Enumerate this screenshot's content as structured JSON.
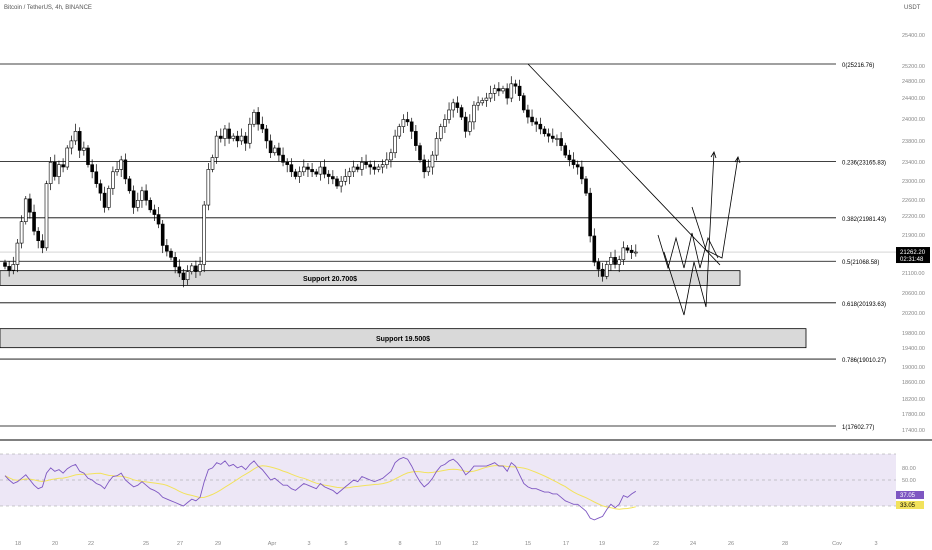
{
  "header": {
    "symbol_line": "Bitcoin / TetherUS, 4h, BINANCE",
    "currency": "USDT"
  },
  "colors": {
    "candle_up": "#ffffff",
    "candle_down": "#000000",
    "candle_border": "#000000",
    "fib_line": "#000000",
    "support_fill": "#d9d9d9",
    "rsi_line": "#7e57c2",
    "rsi_ma": "#f2e25c",
    "rsi_band": "#ede7f6",
    "price_label_bg": "#000000",
    "rsi_label_bg": "#7e57c2",
    "rsi_ma_label_bg": "#f2e25c"
  },
  "chart_data": {
    "type": "candlestick",
    "price_axis": {
      "ticks": [
        "25400.00",
        "25200.00",
        "24800.00",
        "24400.00",
        "24000.00",
        "23800.00",
        "23400.00",
        "23000.00",
        "22600.00",
        "22200.00",
        "21900.00",
        "21500.00",
        "21100.00",
        "20600.00",
        "20200.00",
        "19800.00",
        "19400.00",
        "19000.00",
        "18600.00",
        "18200.00",
        "17800.00",
        "17400.00"
      ],
      "ylim": [
        17300,
        25500
      ]
    },
    "time_axis": {
      "ticks": [
        "18",
        "20",
        "22",
        "25",
        "27",
        "29",
        "Apr",
        "3",
        "5",
        "8",
        "10",
        "12",
        "15",
        "17",
        "19",
        "22",
        "24",
        "26",
        "28",
        "Cov",
        "3"
      ]
    },
    "current_price": {
      "value": "21262.20",
      "countdown": "02:31:48"
    },
    "fib_levels": [
      {
        "ratio": "0",
        "price": 25216.76,
        "label": "0(25216.76)"
      },
      {
        "ratio": "0.236",
        "price": 23165.83,
        "label": "0.236(23165.83)"
      },
      {
        "ratio": "0.382",
        "price": 21981.43,
        "label": "0.382(21981.43)"
      },
      {
        "ratio": "0.5",
        "price": 21068.58,
        "label": "0.5(21068.58)"
      },
      {
        "ratio": "0.618",
        "price": 20193.63,
        "label": "0.618(20193.63)"
      },
      {
        "ratio": "0.786",
        "price": 19010.27,
        "label": "0.786(19010.27)"
      },
      {
        "ratio": "1",
        "price": 17602.77,
        "label": "1(17602.77)"
      }
    ],
    "support_zones": [
      {
        "label": "Support 20.700$",
        "top": 20870,
        "bottom": 20560
      },
      {
        "label": "Support 19.500$",
        "top": 19650,
        "bottom": 19250
      }
    ],
    "candles_close": [
      20960,
      20880,
      21000,
      21450,
      21900,
      22380,
      22100,
      21700,
      21500,
      21350,
      22700,
      23150,
      22850,
      23100,
      23050,
      23450,
      23600,
      23800,
      23400,
      23450,
      23100,
      22950,
      22700,
      22500,
      22200,
      22600,
      22950,
      23000,
      23200,
      22800,
      22550,
      22200,
      22350,
      22550,
      22350,
      22150,
      22050,
      21850,
      21400,
      21280,
      21150,
      20950,
      20820,
      20680,
      20850,
      20970,
      20850,
      21000,
      22250,
      23000,
      23250,
      23700,
      23650,
      23850,
      23650,
      23700,
      23600,
      23700,
      23550,
      23950,
      24200,
      23950,
      23850,
      23600,
      23350,
      23450,
      23300,
      23150,
      23100,
      22950,
      22850,
      22950,
      23050,
      23000,
      22950,
      22900,
      23050,
      22900,
      22850,
      22800,
      22650,
      22750,
      22850,
      22950,
      23050,
      23000,
      23150,
      23100,
      23050,
      23000,
      23050,
      23100,
      23200,
      23350,
      23700,
      23900,
      24050,
      24000,
      23800,
      23500,
      23200,
      22950,
      23050,
      23300,
      23650,
      23900,
      24050,
      24250,
      24400,
      24300,
      24100,
      23800,
      24000,
      24350,
      24400,
      24450,
      24500,
      24600,
      24700,
      24650,
      24700,
      24500,
      24800,
      24750,
      24550,
      24250,
      24100,
      24000,
      23950,
      23850,
      23750,
      23700,
      23650,
      23650,
      23500,
      23300,
      23200,
      23100,
      23050,
      22800,
      22500,
      21600,
      21050,
      20900,
      20750,
      21000,
      21150,
      21000,
      21100,
      21350,
      21300,
      21250,
      21262
    ],
    "fib_range": {
      "high": 25216.76,
      "low": 17602.77
    },
    "annotations": [
      "projection path zig-zag with arrows toward 0.236 level",
      "descending trendline from 25216 high"
    ],
    "rsi": {
      "levels": [
        "80.00",
        "50.00",
        "20.00"
      ],
      "ylim": [
        0,
        100
      ],
      "value_label": "37.05",
      "ma_label": "33.05",
      "values": [
        55,
        50,
        46,
        48,
        52,
        56,
        50,
        44,
        40,
        42,
        58,
        64,
        60,
        62,
        58,
        63,
        66,
        68,
        60,
        58,
        52,
        50,
        46,
        44,
        40,
        48,
        54,
        55,
        58,
        50,
        46,
        42,
        44,
        48,
        44,
        40,
        38,
        35,
        30,
        28,
        26,
        24,
        22,
        20,
        24,
        28,
        26,
        30,
        48,
        62,
        64,
        70,
        68,
        72,
        66,
        68,
        64,
        66,
        62,
        68,
        72,
        66,
        62,
        56,
        50,
        52,
        48,
        44,
        44,
        40,
        38,
        42,
        46,
        44,
        42,
        40,
        46,
        42,
        40,
        38,
        34,
        38,
        42,
        46,
        50,
        48,
        54,
        52,
        50,
        48,
        50,
        52,
        56,
        60,
        70,
        74,
        76,
        74,
        66,
        56,
        48,
        42,
        46,
        52,
        60,
        66,
        68,
        72,
        74,
        70,
        64,
        56,
        60,
        66,
        66,
        66,
        66,
        68,
        70,
        66,
        66,
        60,
        70,
        66,
        56,
        46,
        42,
        40,
        40,
        38,
        36,
        36,
        34,
        34,
        30,
        26,
        24,
        22,
        22,
        18,
        14,
        6,
        4,
        6,
        8,
        16,
        22,
        18,
        22,
        32,
        30,
        34,
        37
      ]
    }
  }
}
